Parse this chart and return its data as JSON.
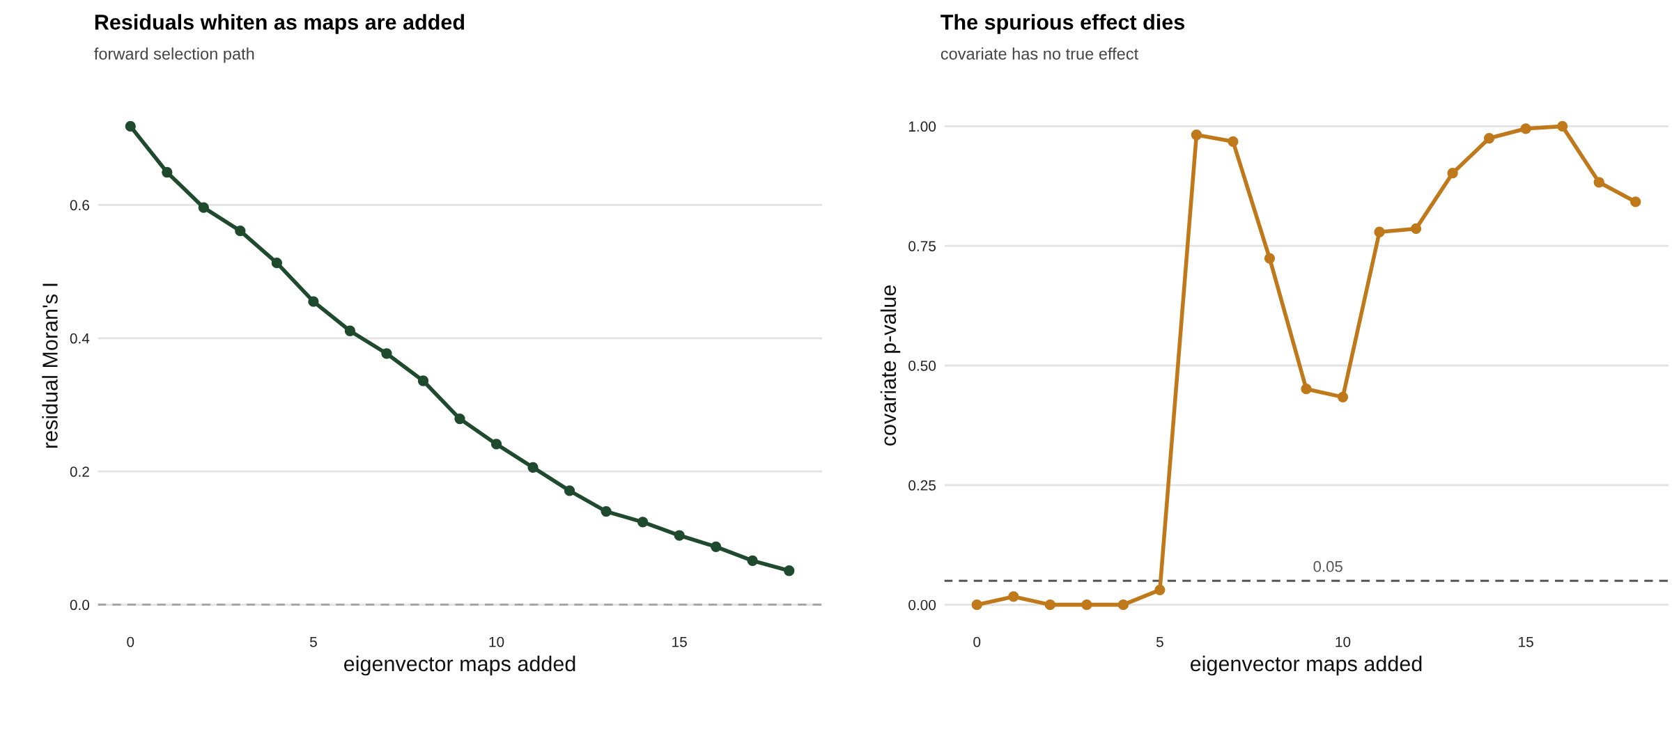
{
  "chart_data": [
    {
      "type": "line",
      "title": "Residuals whiten as maps are added",
      "subtitle": "forward selection path",
      "xlabel": "eigenvector maps added",
      "ylabel": "residual Moran's I",
      "x": [
        0,
        1,
        2,
        3,
        4,
        5,
        6,
        7,
        8,
        9,
        10,
        11,
        12,
        13,
        14,
        15,
        16,
        17,
        18
      ],
      "series": [
        {
          "color": "#1f4a2e",
          "values": [
            0.718,
            0.649,
            0.596,
            0.561,
            0.513,
            0.455,
            0.411,
            0.377,
            0.336,
            0.279,
            0.241,
            0.206,
            0.171,
            0.14,
            0.124,
            0.104,
            0.087,
            0.066,
            0.051
          ]
        }
      ],
      "xlim": [
        -0.9,
        18.9
      ],
      "xticks": [
        0,
        5,
        10,
        15
      ],
      "ylim": [
        -0.036,
        0.754
      ],
      "yticks": [
        {
          "value": 0,
          "label": "0.0"
        },
        {
          "value": 0.2,
          "label": "0.2"
        },
        {
          "value": 0.4,
          "label": "0.4"
        },
        {
          "value": 0.6,
          "label": "0.6"
        }
      ],
      "grid": "y",
      "marker": "circle",
      "line_style": "solid",
      "ref_lines": [
        {
          "axis": "y",
          "value": 0,
          "color": "#a6a6a6",
          "line_style": "dashed"
        }
      ]
    },
    {
      "type": "line",
      "title": "The spurious effect dies",
      "subtitle": "covariate has no true effect",
      "xlabel": "eigenvector maps added",
      "ylabel": "covariate p-value",
      "x": [
        0,
        1,
        2,
        3,
        4,
        5,
        6,
        7,
        8,
        9,
        10,
        11,
        12,
        13,
        14,
        15,
        16,
        17,
        18
      ],
      "series": [
        {
          "color": "#c0791a",
          "values": [
            0.0,
            0.017,
            0.0,
            0.0,
            0.0,
            0.031,
            0.982,
            0.968,
            0.724,
            0.451,
            0.434,
            0.779,
            0.786,
            0.902,
            0.975,
            0.995,
            1.0,
            0.883,
            0.842
          ]
        }
      ],
      "xlim": [
        -0.9,
        18.9
      ],
      "xticks": [
        0,
        5,
        10,
        15
      ],
      "ylim": [
        -0.05,
        1.05
      ],
      "yticks": [
        {
          "value": 0,
          "label": "0.00"
        },
        {
          "value": 0.25,
          "label": "0.25"
        },
        {
          "value": 0.5,
          "label": "0.50"
        },
        {
          "value": 0.75,
          "label": "0.75"
        },
        {
          "value": 1,
          "label": "1.00"
        }
      ],
      "grid": "y",
      "marker": "circle",
      "line_style": "solid",
      "ref_lines": [
        {
          "axis": "y",
          "value": 0.05,
          "label": "0.05",
          "color": "#555555",
          "line_style": "dashed"
        }
      ]
    }
  ]
}
